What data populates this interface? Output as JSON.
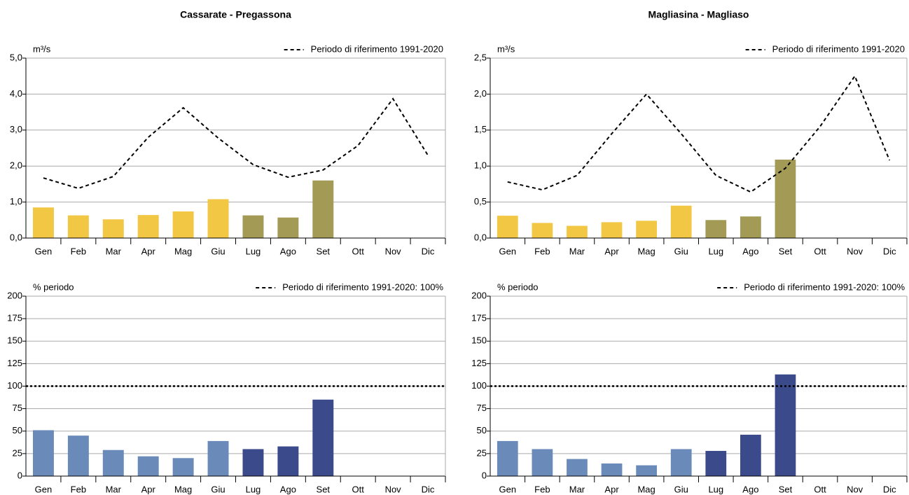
{
  "chart_data": [
    {
      "type": "bar",
      "title": "Cassarate - Pregassona",
      "unit_label": "m³/s",
      "categories": [
        "Gen",
        "Feb",
        "Mar",
        "Apr",
        "Mag",
        "Giu",
        "Lug",
        "Ago",
        "Set",
        "Ott",
        "Nov",
        "Dic"
      ],
      "ylim": [
        0,
        5
      ],
      "yticks": [
        {
          "value": 0,
          "label": "0,0"
        },
        {
          "value": 1,
          "label": "1,0"
        },
        {
          "value": 2,
          "label": "2,0"
        },
        {
          "value": 3,
          "label": "3,0"
        },
        {
          "value": 4,
          "label": "4,0"
        },
        {
          "value": 5,
          "label": "5,0"
        }
      ],
      "grid": true,
      "series": [
        {
          "type": "bar",
          "values": [
            0.85,
            0.63,
            0.52,
            0.64,
            0.74,
            1.08,
            0.63,
            0.57,
            1.6,
            null,
            null,
            null
          ],
          "colors": [
            "#f2c744",
            "#f2c744",
            "#f2c744",
            "#f2c744",
            "#f2c744",
            "#f2c744",
            "#a39a55",
            "#a39a55",
            "#a39a55",
            null,
            null,
            null
          ]
        },
        {
          "type": "line",
          "name": "Periodo di riferimento 1991-2020",
          "color": "#000000",
          "dashed": true,
          "values": [
            1.67,
            1.38,
            1.71,
            2.8,
            3.62,
            2.78,
            2.04,
            1.69,
            1.89,
            2.57,
            3.87,
            2.3
          ]
        }
      ]
    },
    {
      "type": "bar",
      "title": "Magliasina - Magliaso",
      "unit_label": "m³/s",
      "categories": [
        "Gen",
        "Feb",
        "Mar",
        "Apr",
        "Mag",
        "Giu",
        "Lug",
        "Ago",
        "Set",
        "Ott",
        "Nov",
        "Dic"
      ],
      "ylim": [
        0,
        2.5
      ],
      "yticks": [
        {
          "value": 0,
          "label": "0,0"
        },
        {
          "value": 0.5,
          "label": "0,5"
        },
        {
          "value": 1,
          "label": "1,0"
        },
        {
          "value": 1.5,
          "label": "1,5"
        },
        {
          "value": 2,
          "label": "2,0"
        },
        {
          "value": 2.5,
          "label": "2,5"
        }
      ],
      "grid": true,
      "series": [
        {
          "type": "bar",
          "values": [
            0.31,
            0.21,
            0.17,
            0.22,
            0.24,
            0.45,
            0.25,
            0.3,
            1.09,
            null,
            null,
            null
          ],
          "colors": [
            "#f2c744",
            "#f2c744",
            "#f2c744",
            "#f2c744",
            "#f2c744",
            "#f2c744",
            "#a39a55",
            "#a39a55",
            "#a39a55",
            null,
            null,
            null
          ]
        },
        {
          "type": "line",
          "name": "Periodo di riferimento 1991-2020",
          "color": "#000000",
          "dashed": true,
          "values": [
            0.78,
            0.67,
            0.87,
            1.45,
            2.0,
            1.45,
            0.87,
            0.64,
            0.97,
            1.55,
            2.25,
            1.08
          ]
        }
      ]
    },
    {
      "type": "bar",
      "unit_label": "% periodo",
      "categories": [
        "Gen",
        "Feb",
        "Mar",
        "Apr",
        "Mag",
        "Giu",
        "Lug",
        "Ago",
        "Set",
        "Ott",
        "Nov",
        "Dic"
      ],
      "ylim": [
        0,
        200
      ],
      "yticks": [
        0,
        25,
        50,
        75,
        100,
        125,
        150,
        175,
        200
      ],
      "grid": true,
      "series": [
        {
          "type": "bar",
          "values": [
            51,
            45,
            29,
            22,
            20,
            39,
            30,
            33,
            85,
            null,
            null,
            null
          ],
          "colors": [
            "#6a8bba",
            "#6a8bba",
            "#6a8bba",
            "#6a8bba",
            "#6a8bba",
            "#6a8bba",
            "#3b4a8a",
            "#3b4a8a",
            "#3b4a8a",
            null,
            null,
            null
          ]
        },
        {
          "type": "hline",
          "name": "Periodo di riferimento 1991-2020: 100%",
          "color": "#000000",
          "dashed": true,
          "value": 100
        }
      ]
    },
    {
      "type": "bar",
      "unit_label": "% periodo",
      "categories": [
        "Gen",
        "Feb",
        "Mar",
        "Apr",
        "Mag",
        "Giu",
        "Lug",
        "Ago",
        "Set",
        "Ott",
        "Nov",
        "Dic"
      ],
      "ylim": [
        0,
        200
      ],
      "yticks": [
        0,
        25,
        50,
        75,
        100,
        125,
        150,
        175,
        200
      ],
      "grid": true,
      "series": [
        {
          "type": "bar",
          "values": [
            39,
            30,
            19,
            14,
            12,
            30,
            28,
            46,
            113,
            null,
            null,
            null
          ],
          "colors": [
            "#6a8bba",
            "#6a8bba",
            "#6a8bba",
            "#6a8bba",
            "#6a8bba",
            "#6a8bba",
            "#3b4a8a",
            "#3b4a8a",
            "#3b4a8a",
            null,
            null,
            null
          ]
        },
        {
          "type": "hline",
          "name": "Periodo di riferimento 1991-2020: 100%",
          "color": "#000000",
          "dashed": true,
          "value": 100
        }
      ]
    }
  ]
}
